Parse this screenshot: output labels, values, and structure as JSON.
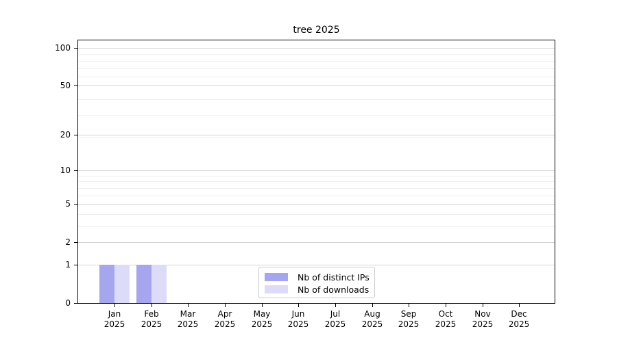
{
  "chart_data": {
    "type": "bar",
    "title": "tree 2025",
    "y_scale": "log1p",
    "grid": true,
    "ylim": [
      0,
      116
    ],
    "y_ticks": [
      0,
      1,
      2,
      5,
      10,
      20,
      50,
      100
    ],
    "y_minor_gridlines": [
      3,
      4,
      6,
      7,
      8,
      9,
      19,
      29,
      39,
      59,
      69,
      79,
      89
    ],
    "x_categories": [
      "Jan",
      "Feb",
      "Mar",
      "Apr",
      "May",
      "Jun",
      "Jul",
      "Aug",
      "Sep",
      "Oct",
      "Nov",
      "Dec"
    ],
    "x_year": "2025",
    "series": [
      {
        "name": "Nb of distinct IPs",
        "color": "#a6a6f0",
        "values": [
          1,
          1,
          0,
          0,
          0,
          0,
          0,
          0,
          0,
          0,
          0,
          0
        ]
      },
      {
        "name": "Nb of downloads",
        "color": "#dcdcf8",
        "values": [
          1,
          1,
          0,
          0,
          0,
          0,
          0,
          0,
          0,
          0,
          0,
          0
        ]
      }
    ],
    "legend_position": "lower center"
  },
  "colors": {
    "background": "#ffffff",
    "axis": "#000000",
    "grid_major": "#d4d4d4",
    "grid_minor": "#f0f0f0",
    "legend_border": "#cccccc",
    "text": "#000000"
  }
}
